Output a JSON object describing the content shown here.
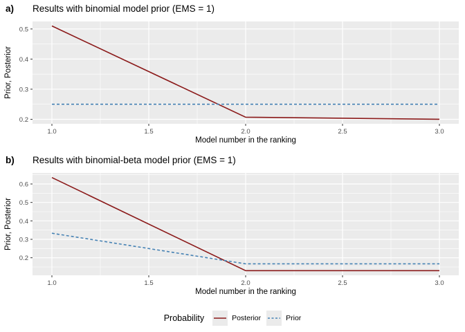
{
  "figure": {
    "legend": {
      "title": "Probability",
      "entries": [
        {
          "label": "Posterior",
          "color": "#8B1A1A",
          "dash": "solid"
        },
        {
          "label": "Prior",
          "color": "#4682B4",
          "dash": "dashed"
        }
      ]
    },
    "colors": {
      "panel_background": "#EBEBEB",
      "gridline": "#FFFFFF",
      "tick_label": "#4D4D4D",
      "tick_mark": "#333333",
      "posterior_line": "#8B1A1A",
      "prior_line": "#4682B4",
      "legend_key_background": "#EBEBEB"
    }
  },
  "chart_data": [
    {
      "id": "a",
      "type": "line",
      "tag": "a)",
      "title": "Results with binomial model prior (EMS = 1)",
      "xlabel": "Model number in the ranking",
      "ylabel": "Prior, Posterior",
      "x": [
        1,
        2,
        3
      ],
      "series": [
        {
          "name": "Posterior",
          "values": [
            0.51,
            0.207,
            0.2
          ],
          "color": "#8B1A1A",
          "dash": "solid"
        },
        {
          "name": "Prior",
          "values": [
            0.25,
            0.25,
            0.25
          ],
          "color": "#4682B4",
          "dash": "dashed"
        }
      ],
      "xlim": [
        0.9,
        3.1
      ],
      "ylim": [
        0.185,
        0.525
      ],
      "xticks": [
        1.0,
        1.5,
        2.0,
        2.5,
        3.0
      ],
      "yticks": [
        0.2,
        0.3,
        0.4,
        0.5
      ],
      "grid": "major+minor",
      "legend_position": "bottom"
    },
    {
      "id": "b",
      "type": "line",
      "tag": "b)",
      "title": "Results with binomial-beta model prior (EMS = 1)",
      "xlabel": "Model number in the ranking",
      "ylabel": "Prior, Posterior",
      "x": [
        1,
        2,
        3
      ],
      "series": [
        {
          "name": "Posterior",
          "values": [
            0.635,
            0.13,
            0.13
          ],
          "color": "#8B1A1A",
          "dash": "solid"
        },
        {
          "name": "Prior",
          "values": [
            0.333,
            0.167,
            0.167
          ],
          "color": "#4682B4",
          "dash": "dashed"
        }
      ],
      "xlim": [
        0.9,
        3.1
      ],
      "ylim": [
        0.105,
        0.66
      ],
      "xticks": [
        1.0,
        1.5,
        2.0,
        2.5,
        3.0
      ],
      "yticks": [
        0.2,
        0.3,
        0.4,
        0.5,
        0.6
      ],
      "grid": "major+minor",
      "legend_position": "bottom"
    }
  ]
}
